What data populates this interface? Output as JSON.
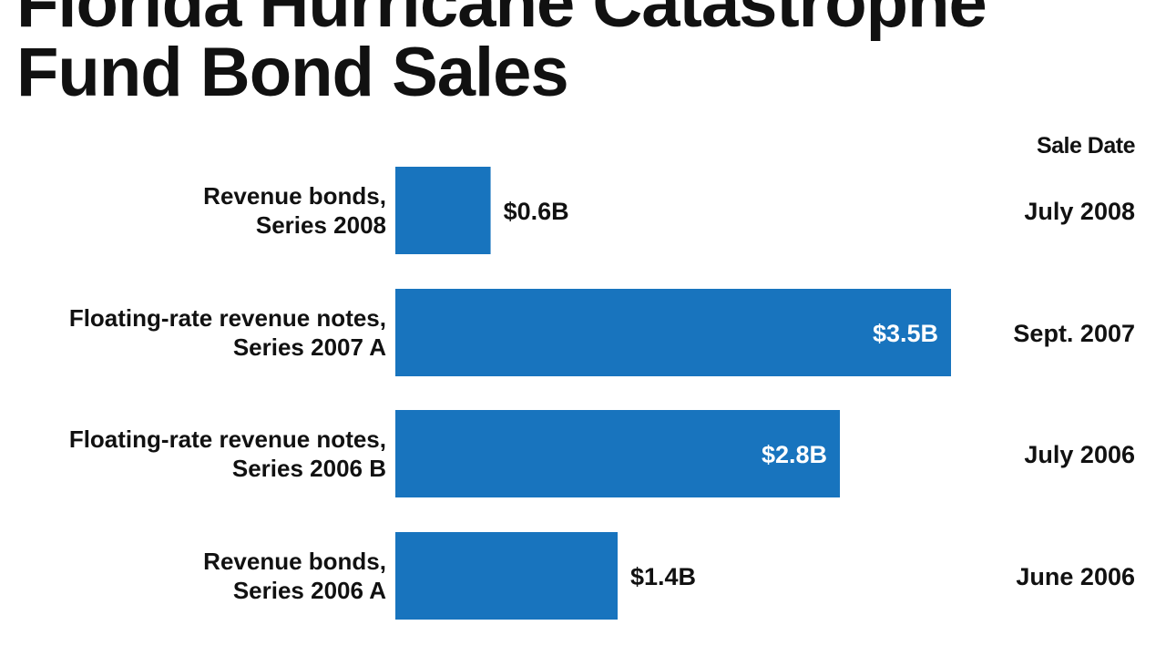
{
  "header": {
    "title_line1": "Florida Hurricane Catastrophe",
    "title_line2": "Fund Bond Sales",
    "sale_date_label": "Sale Date"
  },
  "colors": {
    "bar": "#1874BE",
    "inside_label": "#ffffff",
    "outside_label": "#111111"
  },
  "chart_data": {
    "type": "bar",
    "orientation": "horizontal",
    "title": "Florida Hurricane Catastrophe Fund Bond Sales",
    "xlabel": "",
    "ylabel": "",
    "xlim": [
      0,
      3.5
    ],
    "unit": "$ billions",
    "grid": false,
    "categories": [
      [
        "Revenue bonds,",
        "Series 2008"
      ],
      [
        "Floating-rate revenue notes,",
        "Series 2007 A"
      ],
      [
        "Floating-rate revenue notes,",
        "Series 2006 B"
      ],
      [
        "Revenue bonds,",
        "Series 2006 A"
      ]
    ],
    "values": [
      0.6,
      3.5,
      2.8,
      1.4
    ],
    "value_labels": [
      "$0.6B",
      "$3.5B",
      "$2.8B",
      "$1.4B"
    ],
    "sale_dates": [
      "July 2008",
      "Sept. 2007",
      "July 2006",
      "June 2006"
    ]
  }
}
